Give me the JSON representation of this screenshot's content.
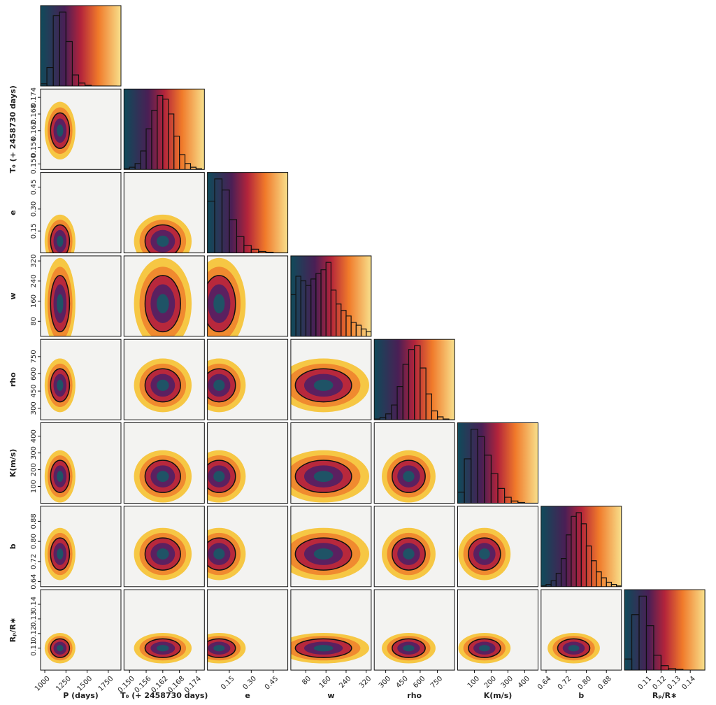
{
  "chart_data": {
    "type": "corner",
    "params": [
      {
        "name": "P (days)",
        "lim": [
          950,
          1900
        ],
        "ticks": [
          1000,
          1250,
          1500,
          1750
        ],
        "mean": 1180,
        "std": 70,
        "bins": [
          950,
          1025,
          1100,
          1175,
          1250,
          1325,
          1400,
          1475,
          1550,
          1625,
          1700,
          1775,
          1850
        ],
        "counts": [
          3,
          25,
          95,
          100,
          60,
          15,
          4,
          1,
          0,
          0,
          0,
          0
        ]
      },
      {
        "name": "T₀ (+ 2458730 days)",
        "lim": [
          0.148,
          0.177
        ],
        "ticks": [
          {
            "value": 0.15,
            "label": "0.150"
          },
          0.156,
          0.162,
          0.168,
          0.174
        ],
        "mean": 0.162,
        "std": 0.004,
        "bins": [
          0.148,
          0.15,
          0.152,
          0.154,
          0.156,
          0.158,
          0.16,
          0.162,
          0.164,
          0.166,
          0.168,
          0.17,
          0.172,
          0.174,
          0.176
        ],
        "counts": [
          1,
          3,
          8,
          25,
          55,
          80,
          100,
          95,
          75,
          45,
          20,
          8,
          3,
          1
        ]
      },
      {
        "name": "e",
        "lim": [
          0,
          0.55
        ],
        "ticks": [
          0.15,
          {
            "value": 0.3,
            "label": "0.30"
          },
          0.45
        ],
        "mean": 0.08,
        "std": 0.07,
        "bins": [
          0,
          0.05,
          0.1,
          0.15,
          0.2,
          0.25,
          0.3,
          0.35,
          0.4,
          0.45,
          0.5,
          0.55
        ],
        "counts": [
          70,
          100,
          85,
          45,
          22,
          10,
          5,
          2,
          1,
          0,
          0
        ]
      },
      {
        "name": "w",
        "lim": [
          20,
          340
        ],
        "ticks": [
          80,
          160,
          240,
          320
        ],
        "mean": 150,
        "std": 70,
        "bins": [
          20,
          40,
          60,
          80,
          100,
          120,
          140,
          160,
          180,
          200,
          220,
          240,
          260,
          280,
          300,
          320,
          340
        ],
        "counts": [
          45,
          65,
          60,
          55,
          62,
          68,
          72,
          80,
          50,
          35,
          28,
          22,
          15,
          12,
          8,
          5
        ]
      },
      {
        "name": "rho",
        "lim": [
          200,
          900
        ],
        "ticks": [
          300,
          450,
          600,
          750
        ],
        "mean": 500,
        "std": 90,
        "bins": [
          200,
          250,
          300,
          350,
          400,
          450,
          500,
          550,
          600,
          650,
          700,
          750,
          800,
          850,
          900
        ],
        "counts": [
          1,
          3,
          8,
          20,
          45,
          75,
          95,
          100,
          70,
          35,
          12,
          4,
          1,
          0
        ]
      },
      {
        "name": "K(m/s)",
        "lim": [
          0,
          480
        ],
        "ticks": [
          100,
          200,
          300,
          400
        ],
        "mean": 160,
        "std": 60,
        "bins": [
          0,
          40,
          80,
          120,
          160,
          200,
          240,
          280,
          320,
          360,
          400,
          440,
          480
        ],
        "counts": [
          15,
          60,
          100,
          90,
          65,
          40,
          20,
          8,
          3,
          1,
          0,
          0
        ]
      },
      {
        "name": "b",
        "lim": [
          0.62,
          0.94
        ],
        "ticks": [
          0.64,
          0.72,
          {
            "value": 0.8,
            "label": "0.80"
          },
          0.88
        ],
        "mean": 0.75,
        "std": 0.04,
        "bins": [
          0.62,
          0.64,
          0.66,
          0.68,
          0.7,
          0.72,
          0.74,
          0.76,
          0.78,
          0.8,
          0.82,
          0.84,
          0.86,
          0.88,
          0.9,
          0.92,
          0.94
        ],
        "counts": [
          1,
          3,
          8,
          18,
          38,
          70,
          95,
          100,
          85,
          55,
          35,
          20,
          12,
          6,
          3,
          1
        ]
      },
      {
        "name": "Rₚ/R∗",
        "lim": [
          0.095,
          0.15
        ],
        "ticks": [
          0.11,
          0.12,
          0.13,
          0.14
        ],
        "mean": 0.11,
        "std": 0.004,
        "bins": [
          0.095,
          0.1,
          0.105,
          0.11,
          0.115,
          0.12,
          0.125,
          0.13,
          0.135,
          0.14,
          0.145,
          0.15
        ],
        "counts": [
          15,
          75,
          100,
          60,
          20,
          6,
          2,
          1,
          0,
          0,
          0
        ]
      }
    ]
  }
}
